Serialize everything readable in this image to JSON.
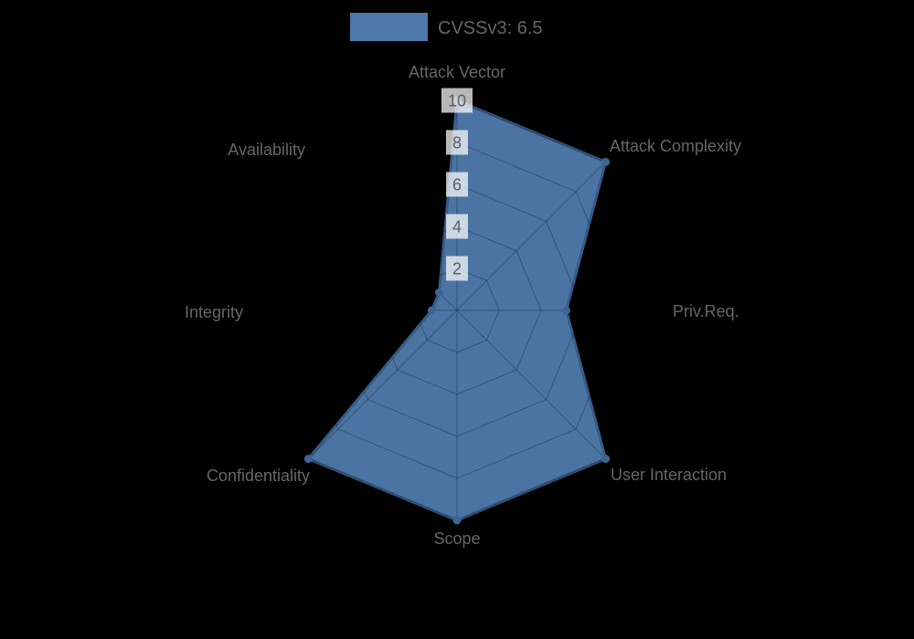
{
  "page": {
    "background_color": "#000000"
  },
  "chart_data": {
    "type": "radar",
    "title": "",
    "legend_label": "CVSSv3: 6.5",
    "legend_position": "top",
    "categories": [
      "Attack Vector",
      "Attack Complexity",
      "Priv.Req.",
      "User Interaction",
      "Scope",
      "Confidentiality",
      "Integrity",
      "Availability"
    ],
    "series": [
      {
        "name": "CVSSv3: 6.5",
        "values": [
          10,
          10,
          5.2,
          10,
          10,
          10,
          1.2,
          1.2
        ]
      }
    ],
    "scale": {
      "min": 0,
      "max": 10,
      "step": 2,
      "tick_values": [
        2,
        4,
        6,
        8,
        10
      ],
      "tick_labels": [
        "2",
        "4",
        "6",
        "8",
        "10"
      ]
    },
    "grid": true,
    "grid_shape": "polygon",
    "colors": {
      "fill": "#4D78A8",
      "border": "#365C86",
      "point": "#3E6493",
      "grid_line": "rgba(0,0,0,0.22)",
      "text": "#666666",
      "tick_text": "#5E5E5E",
      "tick_backdrop": "rgba(255,255,255,0.72)",
      "background": "#000000"
    }
  }
}
